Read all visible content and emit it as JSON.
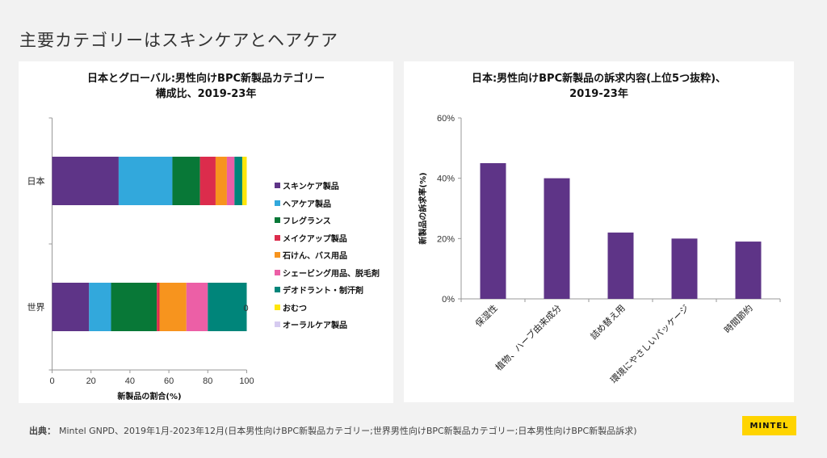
{
  "page": {
    "title": "主要カテゴリーはスキンケアとヘアケア"
  },
  "colors": {
    "skincare": "#5e3487",
    "haircare": "#32a8dc",
    "fragrance": "#087837",
    "makeup": "#dc2c4c",
    "soap_bath": "#f7941e",
    "shaving": "#ec5fa6",
    "deodorant": "#00857a",
    "diapers": "#ffe60a",
    "oralcare": "#d6cbf0",
    "bar_purple": "#5e3487",
    "brand_yellow": "#ffd400"
  },
  "chart_data": [
    {
      "type": "bar",
      "orientation": "horizontal",
      "stacked": true,
      "title_line1": "日本とグローバル:男性向けBPC新製品カテゴリー",
      "title_line2": "構成比、2019-23年",
      "categories": [
        "日本",
        "世界"
      ],
      "xlabel": "新製品の割合(%)",
      "ylabel": "",
      "xlim": [
        0,
        100
      ],
      "xticks": [
        "0",
        "20",
        "40",
        "60",
        "80",
        "100"
      ],
      "grid": false,
      "legend_position": "right",
      "series": [
        {
          "name": "スキンケア製品",
          "color_key": "skincare",
          "values": [
            34.2,
            19.0
          ]
        },
        {
          "name": "ヘアケア製品",
          "color_key": "haircare",
          "values": [
            27.6,
            11.3
          ]
        },
        {
          "name": "フレグランス",
          "color_key": "fragrance",
          "values": [
            14.2,
            23.5
          ]
        },
        {
          "name": "メイクアップ製品",
          "color_key": "makeup",
          "values": [
            8.0,
            1.4
          ]
        },
        {
          "name": "石けん、バス用品",
          "color_key": "soap_bath",
          "values": [
            5.8,
            13.8
          ]
        },
        {
          "name": "シェービング用品、脱毛剤",
          "color_key": "shaving",
          "values": [
            3.9,
            11.0
          ]
        },
        {
          "name": "デオドラント・制汗剤",
          "color_key": "deodorant",
          "values": [
            4.0,
            20.0
          ]
        },
        {
          "name": "おむつ",
          "color_key": "diapers",
          "values": [
            2.3,
            0.0
          ]
        },
        {
          "name": "オーラルケア製品",
          "color_key": "oralcare",
          "values": [
            0.0,
            0.0
          ]
        }
      ],
      "annotations": [
        {
          "category": "世界",
          "text": "0"
        }
      ]
    },
    {
      "type": "bar",
      "orientation": "vertical",
      "title_line1": "日本:男性向けBPC新製品の訴求内容(上位5つ抜粋)、",
      "title_line2": "2019-23年",
      "categories": [
        "保湿性",
        "植物、ハーブ由来成分",
        "詰め替え用",
        "環境にやさしいパッケージ",
        "時間節約"
      ],
      "values": [
        45,
        40,
        22,
        20,
        19
      ],
      "ylabel": "新製品の訴求率(%)",
      "xlabel": "",
      "ylim": [
        0,
        60
      ],
      "yticks": [
        "0%",
        "20%",
        "40%",
        "60%"
      ],
      "grid": false,
      "color_key": "bar_purple"
    }
  ],
  "footer": {
    "source_label": "出典：",
    "source_text": "Mintel GNPD、2019年1月-2023年12月(日本男性向けBPC新製品カテゴリー;世界男性向けBPC新製品カテゴリー;日本男性向けBPC新製品訴求)",
    "logo_text": "MINTEL"
  }
}
